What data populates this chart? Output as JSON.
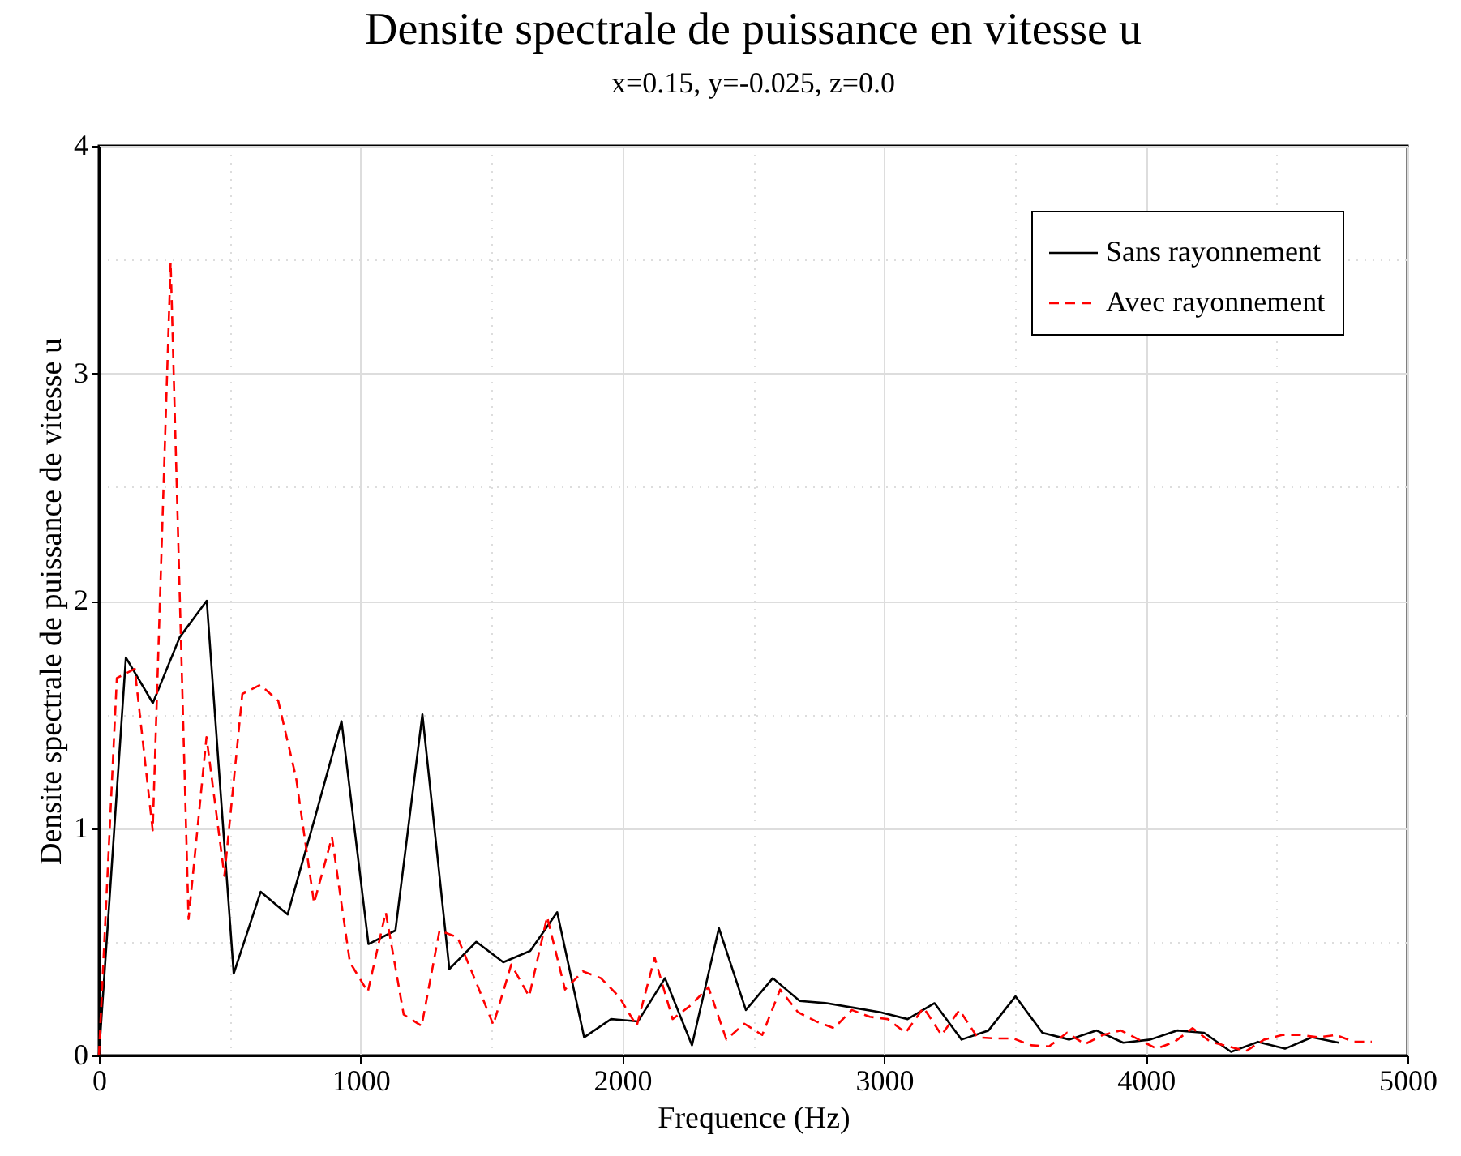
{
  "chart_data": {
    "type": "line",
    "title": "Densite spectrale de puissance en vitesse u",
    "subtitle": "x=0.15, y=-0.025, z=0.0",
    "xlabel": "Frequence (Hz)",
    "ylabel": "Densite spectrale de puissance de vitesse u",
    "xlim": [
      0,
      5000
    ],
    "ylim": [
      0,
      4
    ],
    "xticks": [
      0,
      {
        "value": 500,
        "label": null
      },
      1000,
      {
        "value": 1500,
        "label": null
      },
      2000,
      {
        "value": 2500,
        "label": null
      },
      3000,
      {
        "value": 3500,
        "label": null
      },
      4000,
      {
        "value": 4500,
        "label": null
      },
      5000
    ],
    "yticks": [
      0,
      {
        "value": 0.5,
        "label": null
      },
      1,
      {
        "value": 1.5,
        "label": null
      },
      2,
      {
        "value": 2.5,
        "label": null
      },
      3,
      {
        "value": 3.5,
        "label": null
      },
      4
    ],
    "grid": true,
    "legend": "top right",
    "marker": "none",
    "series": [
      {
        "name": "Sans rayonnement",
        "color": "#000000",
        "line_style": "solid",
        "x": [
          0,
          103,
          206,
          309,
          412,
          515,
          618,
          721,
          824,
          927,
          1030,
          1133,
          1236,
          1339,
          1442,
          1545,
          1648,
          1751,
          1854,
          1957,
          2060,
          2163,
          2266,
          2369,
          2472,
          2575,
          2678,
          2781,
          2884,
          2987,
          3090,
          3193,
          3296,
          3399,
          3502,
          3605,
          3708,
          3811,
          3914,
          4017,
          4120,
          4223,
          4326,
          4429,
          4532,
          4635,
          4738
        ],
        "values": [
          0,
          1.75,
          1.55,
          1.84,
          2.0,
          0.36,
          0.72,
          0.62,
          1.04,
          1.47,
          0.49,
          0.55,
          1.5,
          0.38,
          0.5,
          0.41,
          0.46,
          0.63,
          0.08,
          0.16,
          0.15,
          0.34,
          0.045,
          0.56,
          0.2,
          0.34,
          0.24,
          0.23,
          0.21,
          0.19,
          0.16,
          0.23,
          0.07,
          0.11,
          0.26,
          0.1,
          0.07,
          0.11,
          0.056,
          0.07,
          0.11,
          0.1,
          0.016,
          0.06,
          0.03,
          0.08,
          0.056
        ]
      },
      {
        "name": "Avec rayonnement",
        "color": "#ff0000",
        "line_style": "dashed",
        "x": [
          0,
          68.5,
          137,
          205.5,
          274,
          342.5,
          411,
          479.5,
          548,
          616.5,
          685,
          753.5,
          822,
          890.5,
          959,
          1027.5,
          1096,
          1164.5,
          1233,
          1301.5,
          1370,
          1438.5,
          1507,
          1575.5,
          1644,
          1712.5,
          1781,
          1849.5,
          1918,
          1986.5,
          2055,
          2123.5,
          2192,
          2260.5,
          2329,
          2397.5,
          2466,
          2534.5,
          2603,
          2671.5,
          2740,
          2808.5,
          2877,
          2945.5,
          3014,
          3082.5,
          3151,
          3219.5,
          3288,
          3356.5,
          3425,
          3493.5,
          3562,
          3630.5,
          3699,
          3767.5,
          3836,
          3904.5,
          3973,
          4041.5,
          4110,
          4178.5,
          4247,
          4315.5,
          4384,
          4452.5,
          4521,
          4589.5,
          4658,
          4726.5,
          4795,
          4863.5
        ],
        "values": [
          0,
          1.66,
          1.7,
          0.99,
          3.49,
          0.6,
          1.4,
          0.79,
          1.59,
          1.63,
          1.56,
          1.22,
          0.67,
          0.96,
          0.41,
          0.28,
          0.63,
          0.18,
          0.13,
          0.55,
          0.52,
          0.33,
          0.135,
          0.4,
          0.26,
          0.61,
          0.29,
          0.37,
          0.34,
          0.26,
          0.13,
          0.43,
          0.16,
          0.22,
          0.3,
          0.07,
          0.14,
          0.09,
          0.29,
          0.19,
          0.15,
          0.12,
          0.2,
          0.17,
          0.16,
          0.1,
          0.21,
          0.09,
          0.2,
          0.08,
          0.075,
          0.075,
          0.045,
          0.04,
          0.1,
          0.05,
          0.09,
          0.11,
          0.07,
          0.03,
          0.06,
          0.12,
          0.06,
          0.04,
          0.02,
          0.07,
          0.09,
          0.09,
          0.08,
          0.09,
          0.06,
          0.06
        ]
      }
    ]
  }
}
